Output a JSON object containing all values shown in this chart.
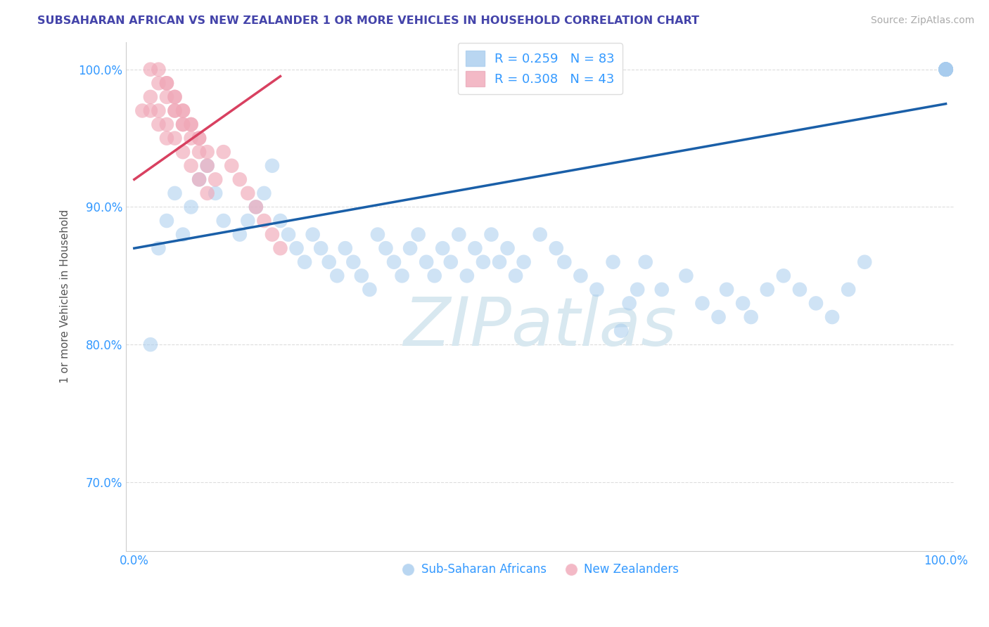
{
  "title": "SUBSAHARAN AFRICAN VS NEW ZEALANDER 1 OR MORE VEHICLES IN HOUSEHOLD CORRELATION CHART",
  "source": "Source: ZipAtlas.com",
  "ylabel": "1 or more Vehicles in Household",
  "xlim": [
    -1,
    101
  ],
  "ylim": [
    65,
    102
  ],
  "yticks": [
    70,
    80,
    90,
    100
  ],
  "ytick_labels": [
    "70.0%",
    "80.0%",
    "90.0%",
    "100.0%"
  ],
  "xtick_vals": [
    0,
    100
  ],
  "xtick_labels": [
    "0.0%",
    "100.0%"
  ],
  "legend_text_blue": "R = 0.259   N = 83",
  "legend_text_pink": "R = 0.308   N = 43",
  "legend_label_blue": "Sub-Saharan Africans",
  "legend_label_pink": "New Zealanders",
  "blue_fill": "#A8CCEE",
  "pink_fill": "#F0A8B8",
  "trend_blue": "#1A5FA8",
  "trend_pink": "#D84060",
  "legend_text_color": "#3399FF",
  "title_color": "#4444AA",
  "tick_color": "#3399FF",
  "grid_color": "#DDDDDD",
  "source_color": "#AAAAAA",
  "blue_x": [
    2,
    3,
    4,
    5,
    6,
    7,
    8,
    9,
    10,
    11,
    13,
    14,
    15,
    16,
    17,
    18,
    19,
    20,
    21,
    22,
    23,
    24,
    25,
    26,
    27,
    28,
    29,
    30,
    31,
    32,
    33,
    34,
    35,
    36,
    37,
    38,
    39,
    40,
    41,
    42,
    43,
    44,
    45,
    46,
    47,
    48,
    50,
    52,
    53,
    55,
    57,
    59,
    60,
    61,
    62,
    63,
    65,
    68,
    70,
    72,
    73,
    75,
    76,
    78,
    80,
    82,
    84,
    86,
    88,
    90,
    100,
    100,
    100,
    100,
    100,
    100,
    100,
    100,
    100,
    100,
    100,
    100,
    100
  ],
  "blue_y": [
    80,
    87,
    89,
    91,
    88,
    90,
    92,
    93,
    91,
    89,
    88,
    89,
    90,
    91,
    93,
    89,
    88,
    87,
    86,
    88,
    87,
    86,
    85,
    87,
    86,
    85,
    84,
    88,
    87,
    86,
    85,
    87,
    88,
    86,
    85,
    87,
    86,
    88,
    85,
    87,
    86,
    88,
    86,
    87,
    85,
    86,
    88,
    87,
    86,
    85,
    84,
    86,
    81,
    83,
    84,
    86,
    84,
    85,
    83,
    82,
    84,
    83,
    82,
    84,
    85,
    84,
    83,
    82,
    84,
    86,
    100,
    100,
    100,
    100,
    100,
    100,
    100,
    100,
    100,
    100,
    100,
    100,
    100
  ],
  "pink_x": [
    1,
    2,
    3,
    4,
    5,
    6,
    7,
    8,
    9,
    10,
    11,
    12,
    13,
    14,
    2,
    3,
    4,
    5,
    6,
    7,
    8,
    9,
    4,
    5,
    6,
    7,
    8,
    9,
    3,
    4,
    5,
    6,
    7,
    8,
    2,
    3,
    4,
    5,
    6,
    15,
    16,
    17,
    18
  ],
  "pink_y": [
    97,
    97,
    96,
    95,
    97,
    96,
    95,
    94,
    93,
    92,
    94,
    93,
    92,
    91,
    98,
    97,
    96,
    95,
    94,
    93,
    92,
    91,
    99,
    98,
    97,
    96,
    95,
    94,
    100,
    99,
    98,
    97,
    96,
    95,
    100,
    99,
    98,
    97,
    96,
    90,
    89,
    88,
    87
  ],
  "trend_blue_x0": 0,
  "trend_blue_y0": 87.0,
  "trend_blue_x1": 100,
  "trend_blue_y1": 97.5,
  "trend_pink_x0": 0,
  "trend_pink_y0": 92.0,
  "trend_pink_x1": 18,
  "trend_pink_y1": 99.5
}
